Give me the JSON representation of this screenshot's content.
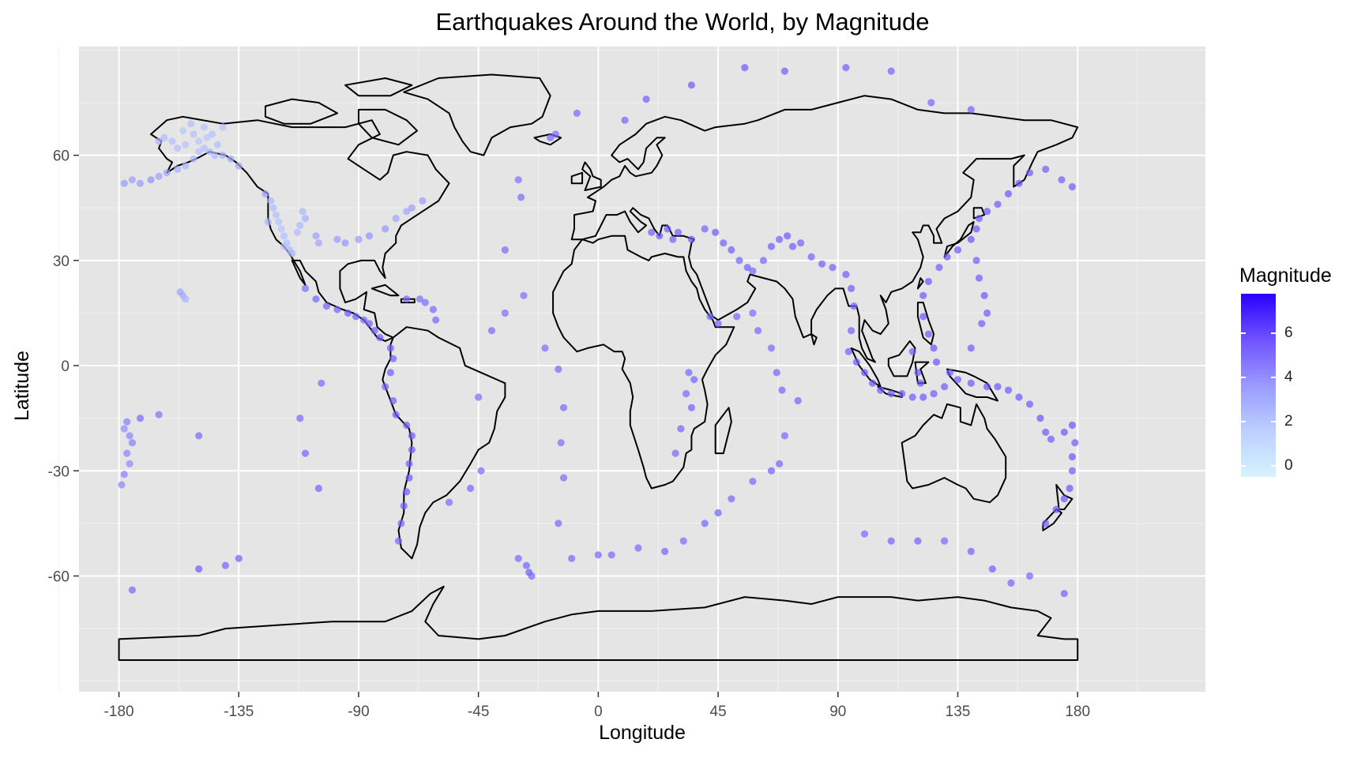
{
  "chart_data": {
    "type": "scatter",
    "title": "Earthquakes Around the World, by Magnitude",
    "xlabel": "Longitude",
    "ylabel": "Latitude",
    "xlim": [
      -195,
      228
    ],
    "ylim": [
      -93,
      91
    ],
    "x_ticks": [
      -180,
      -135,
      -90,
      -45,
      0,
      45,
      90,
      135,
      180
    ],
    "x_tick_labels": [
      "-180",
      "-135",
      "-90",
      "-45",
      "0",
      "45",
      "90",
      "135",
      "180"
    ],
    "y_ticks": [
      -60,
      -30,
      0,
      30,
      60
    ],
    "y_tick_labels": [
      "-60",
      "-30",
      "0",
      "30",
      "60"
    ],
    "grid": true,
    "background": "#e5e5e5",
    "legend": {
      "title": "Magnitude",
      "placement": "right",
      "ticks": [
        0,
        2,
        4,
        6
      ],
      "tick_labels": [
        "0",
        "2",
        "4",
        "6"
      ],
      "range": [
        -0.5,
        7.8
      ],
      "color_low": "#d6f2ff",
      "color_high": "#2a00ff"
    },
    "points": [
      [
        -178,
        52,
        2.6
      ],
      [
        -175,
        53,
        2.4
      ],
      [
        -172,
        52,
        2.5
      ],
      [
        -168,
        53,
        2.8
      ],
      [
        -165,
        54,
        2.3
      ],
      [
        -162,
        55,
        2.1
      ],
      [
        -158,
        56,
        1.9
      ],
      [
        -155,
        57,
        1.6
      ],
      [
        -152,
        59,
        1.5
      ],
      [
        -150,
        61,
        1.2
      ],
      [
        -148,
        62,
        1.3
      ],
      [
        -146,
        61,
        1.5
      ],
      [
        -144,
        60,
        1.6
      ],
      [
        -141,
        60,
        1.8
      ],
      [
        -138,
        59,
        2.0
      ],
      [
        -135,
        57,
        2.2
      ],
      [
        -160,
        64,
        1.2
      ],
      [
        -155,
        63,
        1.1
      ],
      [
        -150,
        64,
        1.0
      ],
      [
        -147,
        65,
        0.9
      ],
      [
        -145,
        66,
        1.1
      ],
      [
        -152,
        66,
        1.2
      ],
      [
        -156,
        67,
        1.0
      ],
      [
        -163,
        65,
        1.4
      ],
      [
        -158,
        62,
        1.3
      ],
      [
        -148,
        68,
        1.1
      ],
      [
        -143,
        63,
        1.2
      ],
      [
        -165,
        64,
        1.6
      ],
      [
        -153,
        69,
        1.3
      ],
      [
        -141,
        68,
        1.0
      ],
      [
        -125,
        49,
        2.4
      ],
      [
        -123,
        47,
        1.5
      ],
      [
        -122,
        45,
        1.4
      ],
      [
        -121,
        43,
        1.2
      ],
      [
        -120,
        41,
        1.1
      ],
      [
        -119,
        39,
        1.0
      ],
      [
        -118,
        37,
        1.2
      ],
      [
        -117,
        35,
        1.3
      ],
      [
        -116,
        33,
        1.5
      ],
      [
        -115,
        32,
        1.7
      ],
      [
        -113,
        38,
        1.4
      ],
      [
        -112,
        40,
        1.6
      ],
      [
        -111,
        44,
        1.5
      ],
      [
        -110,
        42,
        1.8
      ],
      [
        -124,
        41,
        1.6
      ],
      [
        -118,
        34,
        1.1
      ],
      [
        -106,
        37,
        2.3
      ],
      [
        -105,
        35,
        2.2
      ],
      [
        -98,
        36,
        2.5
      ],
      [
        -95,
        35,
        2.7
      ],
      [
        -90,
        36,
        2.6
      ],
      [
        -86,
        37,
        2.8
      ],
      [
        -80,
        39,
        2.7
      ],
      [
        -76,
        42,
        2.2
      ],
      [
        -72,
        44,
        2.1
      ],
      [
        -70,
        45,
        2.3
      ],
      [
        -66,
        47,
        2.4
      ],
      [
        -156,
        20,
        2.0
      ],
      [
        -155,
        19,
        1.8
      ],
      [
        -157,
        21,
        2.2
      ],
      [
        -110,
        22,
        4.1
      ],
      [
        -106,
        19,
        4.3
      ],
      [
        -102,
        17,
        4.5
      ],
      [
        -98,
        16,
        4.4
      ],
      [
        -94,
        15,
        4.6
      ],
      [
        -91,
        14,
        4.5
      ],
      [
        -88,
        13,
        4.3
      ],
      [
        -86,
        12,
        4.4
      ],
      [
        -84,
        10,
        4.5
      ],
      [
        -82,
        8,
        4.6
      ],
      [
        -78,
        5,
        4.4
      ],
      [
        -77,
        2,
        4.5
      ],
      [
        -78,
        -2,
        4.6
      ],
      [
        -80,
        -6,
        4.4
      ],
      [
        -77,
        -10,
        4.5
      ],
      [
        -76,
        -14,
        4.7
      ],
      [
        -72,
        -17,
        4.6
      ],
      [
        -70,
        -20,
        4.8
      ],
      [
        -70,
        -24,
        4.6
      ],
      [
        -71,
        -28,
        4.5
      ],
      [
        -71,
        -32,
        4.7
      ],
      [
        -72,
        -36,
        4.6
      ],
      [
        -73,
        -40,
        4.5
      ],
      [
        -74,
        -45,
        4.3
      ],
      [
        -75,
        -50,
        4.2
      ],
      [
        -65,
        18,
        4.1
      ],
      [
        -62,
        16,
        4.2
      ],
      [
        -61,
        13,
        4.3
      ],
      [
        -67,
        19,
        4.0
      ],
      [
        -72,
        19,
        4.1
      ],
      [
        -27,
        -57,
        4.4
      ],
      [
        -26,
        -59,
        4.5
      ],
      [
        -25,
        -60,
        4.3
      ],
      [
        -30,
        -55,
        4.2
      ],
      [
        -30,
        53,
        4.0
      ],
      [
        -29,
        48,
        4.1
      ],
      [
        -35,
        33,
        4.2
      ],
      [
        -28,
        20,
        4.0
      ],
      [
        -20,
        5,
        4.1
      ],
      [
        -15,
        -1,
        4.3
      ],
      [
        -13,
        -12,
        4.2
      ],
      [
        -14,
        -22,
        4.0
      ],
      [
        -13,
        -32,
        4.1
      ],
      [
        -15,
        -45,
        4.2
      ],
      [
        -10,
        -55,
        4.3
      ],
      [
        -105,
        -35,
        4.5
      ],
      [
        -110,
        -25,
        4.4
      ],
      [
        -112,
        -15,
        4.3
      ],
      [
        -104,
        -5,
        4.1
      ],
      [
        -178,
        -18,
        3.0
      ],
      [
        -176,
        -20,
        3.2
      ],
      [
        -175,
        -22,
        3.4
      ],
      [
        -177,
        -25,
        3.3
      ],
      [
        -176,
        -28,
        3.1
      ],
      [
        -178,
        -31,
        3.4
      ],
      [
        -179,
        -34,
        3.2
      ],
      [
        -177,
        -16,
        3.5
      ],
      [
        20,
        38,
        4.5
      ],
      [
        23,
        37,
        4.6
      ],
      [
        26,
        39,
        4.7
      ],
      [
        28,
        36,
        4.4
      ],
      [
        30,
        38,
        4.5
      ],
      [
        35,
        36,
        4.6
      ],
      [
        40,
        39,
        4.4
      ],
      [
        44,
        38,
        4.7
      ],
      [
        47,
        35,
        4.5
      ],
      [
        50,
        33,
        4.6
      ],
      [
        53,
        30,
        4.4
      ],
      [
        56,
        28,
        4.5
      ],
      [
        58,
        27,
        4.3
      ],
      [
        62,
        30,
        4.4
      ],
      [
        65,
        34,
        4.6
      ],
      [
        68,
        36,
        4.5
      ],
      [
        71,
        37,
        4.7
      ],
      [
        73,
        34,
        4.6
      ],
      [
        76,
        35,
        4.5
      ],
      [
        80,
        31,
        4.4
      ],
      [
        84,
        29,
        4.6
      ],
      [
        88,
        28,
        4.5
      ],
      [
        93,
        26,
        4.7
      ],
      [
        95,
        22,
        4.6
      ],
      [
        96,
        17,
        4.5
      ],
      [
        95,
        10,
        4.4
      ],
      [
        94,
        4,
        4.5
      ],
      [
        97,
        1,
        4.6
      ],
      [
        100,
        -2,
        4.7
      ],
      [
        103,
        -5,
        4.8
      ],
      [
        106,
        -7,
        4.6
      ],
      [
        110,
        -8,
        4.5
      ],
      [
        114,
        -8,
        4.7
      ],
      [
        118,
        -9,
        4.6
      ],
      [
        122,
        -9,
        4.8
      ],
      [
        126,
        -8,
        4.7
      ],
      [
        130,
        -6,
        4.6
      ],
      [
        122,
        14,
        4.8
      ],
      [
        124,
        9,
        4.7
      ],
      [
        126,
        5,
        4.9
      ],
      [
        127,
        1,
        4.8
      ],
      [
        122,
        20,
        4.7
      ],
      [
        124,
        24,
        4.8
      ],
      [
        128,
        28,
        4.6
      ],
      [
        131,
        31,
        4.7
      ],
      [
        135,
        33,
        4.8
      ],
      [
        140,
        36,
        4.9
      ],
      [
        142,
        39,
        4.8
      ],
      [
        143,
        42,
        4.7
      ],
      [
        146,
        44,
        4.8
      ],
      [
        150,
        46,
        4.7
      ],
      [
        154,
        49,
        4.8
      ],
      [
        158,
        52,
        4.9
      ],
      [
        162,
        55,
        4.7
      ],
      [
        168,
        56,
        4.6
      ],
      [
        174,
        53,
        4.5
      ],
      [
        178,
        51,
        4.6
      ],
      [
        142,
        30,
        4.7
      ],
      [
        143,
        25,
        4.6
      ],
      [
        145,
        20,
        4.8
      ],
      [
        146,
        15,
        4.7
      ],
      [
        144,
        12,
        4.6
      ],
      [
        135,
        -4,
        4.7
      ],
      [
        140,
        -5,
        4.8
      ],
      [
        146,
        -6,
        4.9
      ],
      [
        150,
        -6,
        4.8
      ],
      [
        154,
        -7,
        4.7
      ],
      [
        158,
        -9,
        4.8
      ],
      [
        162,
        -11,
        4.7
      ],
      [
        166,
        -15,
        4.9
      ],
      [
        168,
        -19,
        4.8
      ],
      [
        170,
        -21,
        4.7
      ],
      [
        175,
        -19,
        4.8
      ],
      [
        178,
        -17,
        4.9
      ],
      [
        179,
        -22,
        4.7
      ],
      [
        178,
        -26,
        4.8
      ],
      [
        178,
        -30,
        4.7
      ],
      [
        177,
        -35,
        4.9
      ],
      [
        175,
        -38,
        4.8
      ],
      [
        172,
        -41,
        4.7
      ],
      [
        168,
        -45,
        4.6
      ],
      [
        140,
        5,
        4.6
      ],
      [
        132,
        -2,
        4.7
      ],
      [
        120,
        -2,
        4.6
      ],
      [
        118,
        4,
        4.5
      ],
      [
        121,
        -5,
        4.8
      ],
      [
        -165,
        -14,
        4.0
      ],
      [
        -172,
        -15,
        4.3
      ],
      [
        -150,
        -20,
        4.2
      ],
      [
        75,
        -10,
        4.4
      ],
      [
        70,
        -20,
        4.3
      ],
      [
        68,
        -28,
        4.4
      ],
      [
        65,
        -30,
        4.5
      ],
      [
        58,
        -33,
        4.2
      ],
      [
        50,
        -38,
        4.3
      ],
      [
        45,
        -42,
        4.4
      ],
      [
        40,
        -45,
        4.3
      ],
      [
        32,
        -50,
        4.2
      ],
      [
        25,
        -53,
        4.4
      ],
      [
        15,
        -52,
        4.3
      ],
      [
        5,
        -54,
        4.2
      ],
      [
        0,
        -54,
        4.3
      ],
      [
        100,
        -48,
        4.3
      ],
      [
        110,
        -50,
        4.4
      ],
      [
        120,
        -50,
        4.5
      ],
      [
        130,
        -50,
        4.3
      ],
      [
        140,
        -53,
        4.4
      ],
      [
        148,
        -58,
        4.5
      ],
      [
        155,
        -62,
        4.4
      ],
      [
        162,
        -60,
        4.3
      ],
      [
        60,
        10,
        4.3
      ],
      [
        65,
        5,
        4.2
      ],
      [
        67,
        -2,
        4.4
      ],
      [
        69,
        -7,
        4.3
      ],
      [
        58,
        15,
        4.2
      ],
      [
        52,
        14,
        4.3
      ],
      [
        45,
        12,
        4.4
      ],
      [
        42,
        14,
        4.2
      ],
      [
        36,
        -4,
        4.4
      ],
      [
        33,
        -8,
        4.3
      ],
      [
        35,
        -12,
        4.5
      ],
      [
        31,
        -18,
        4.4
      ],
      [
        29,
        -25,
        4.3
      ],
      [
        34,
        -2,
        4.2
      ],
      [
        -45,
        -9,
        4.1
      ],
      [
        -40,
        10,
        4.2
      ],
      [
        -35,
        15,
        4.1
      ],
      [
        -44,
        -30,
        4.2
      ],
      [
        -48,
        -35,
        4.3
      ],
      [
        -56,
        -39,
        4.2
      ],
      [
        -8,
        72,
        4.2
      ],
      [
        -18,
        65,
        4.3
      ],
      [
        -16,
        66,
        4.2
      ],
      [
        10,
        70,
        4.4
      ],
      [
        18,
        76,
        4.5
      ],
      [
        35,
        80,
        4.6
      ],
      [
        55,
        85,
        4.7
      ],
      [
        70,
        84,
        4.6
      ],
      [
        93,
        85,
        4.5
      ],
      [
        110,
        84,
        4.4
      ],
      [
        125,
        75,
        4.3
      ],
      [
        140,
        73,
        4.4
      ],
      [
        -135,
        -55,
        4.5
      ],
      [
        -140,
        -57,
        4.4
      ],
      [
        -150,
        -58,
        4.6
      ],
      [
        -175,
        -64,
        4.3
      ],
      [
        175,
        -65,
        4.5
      ]
    ]
  },
  "map": {
    "outline_color": "#000000"
  }
}
